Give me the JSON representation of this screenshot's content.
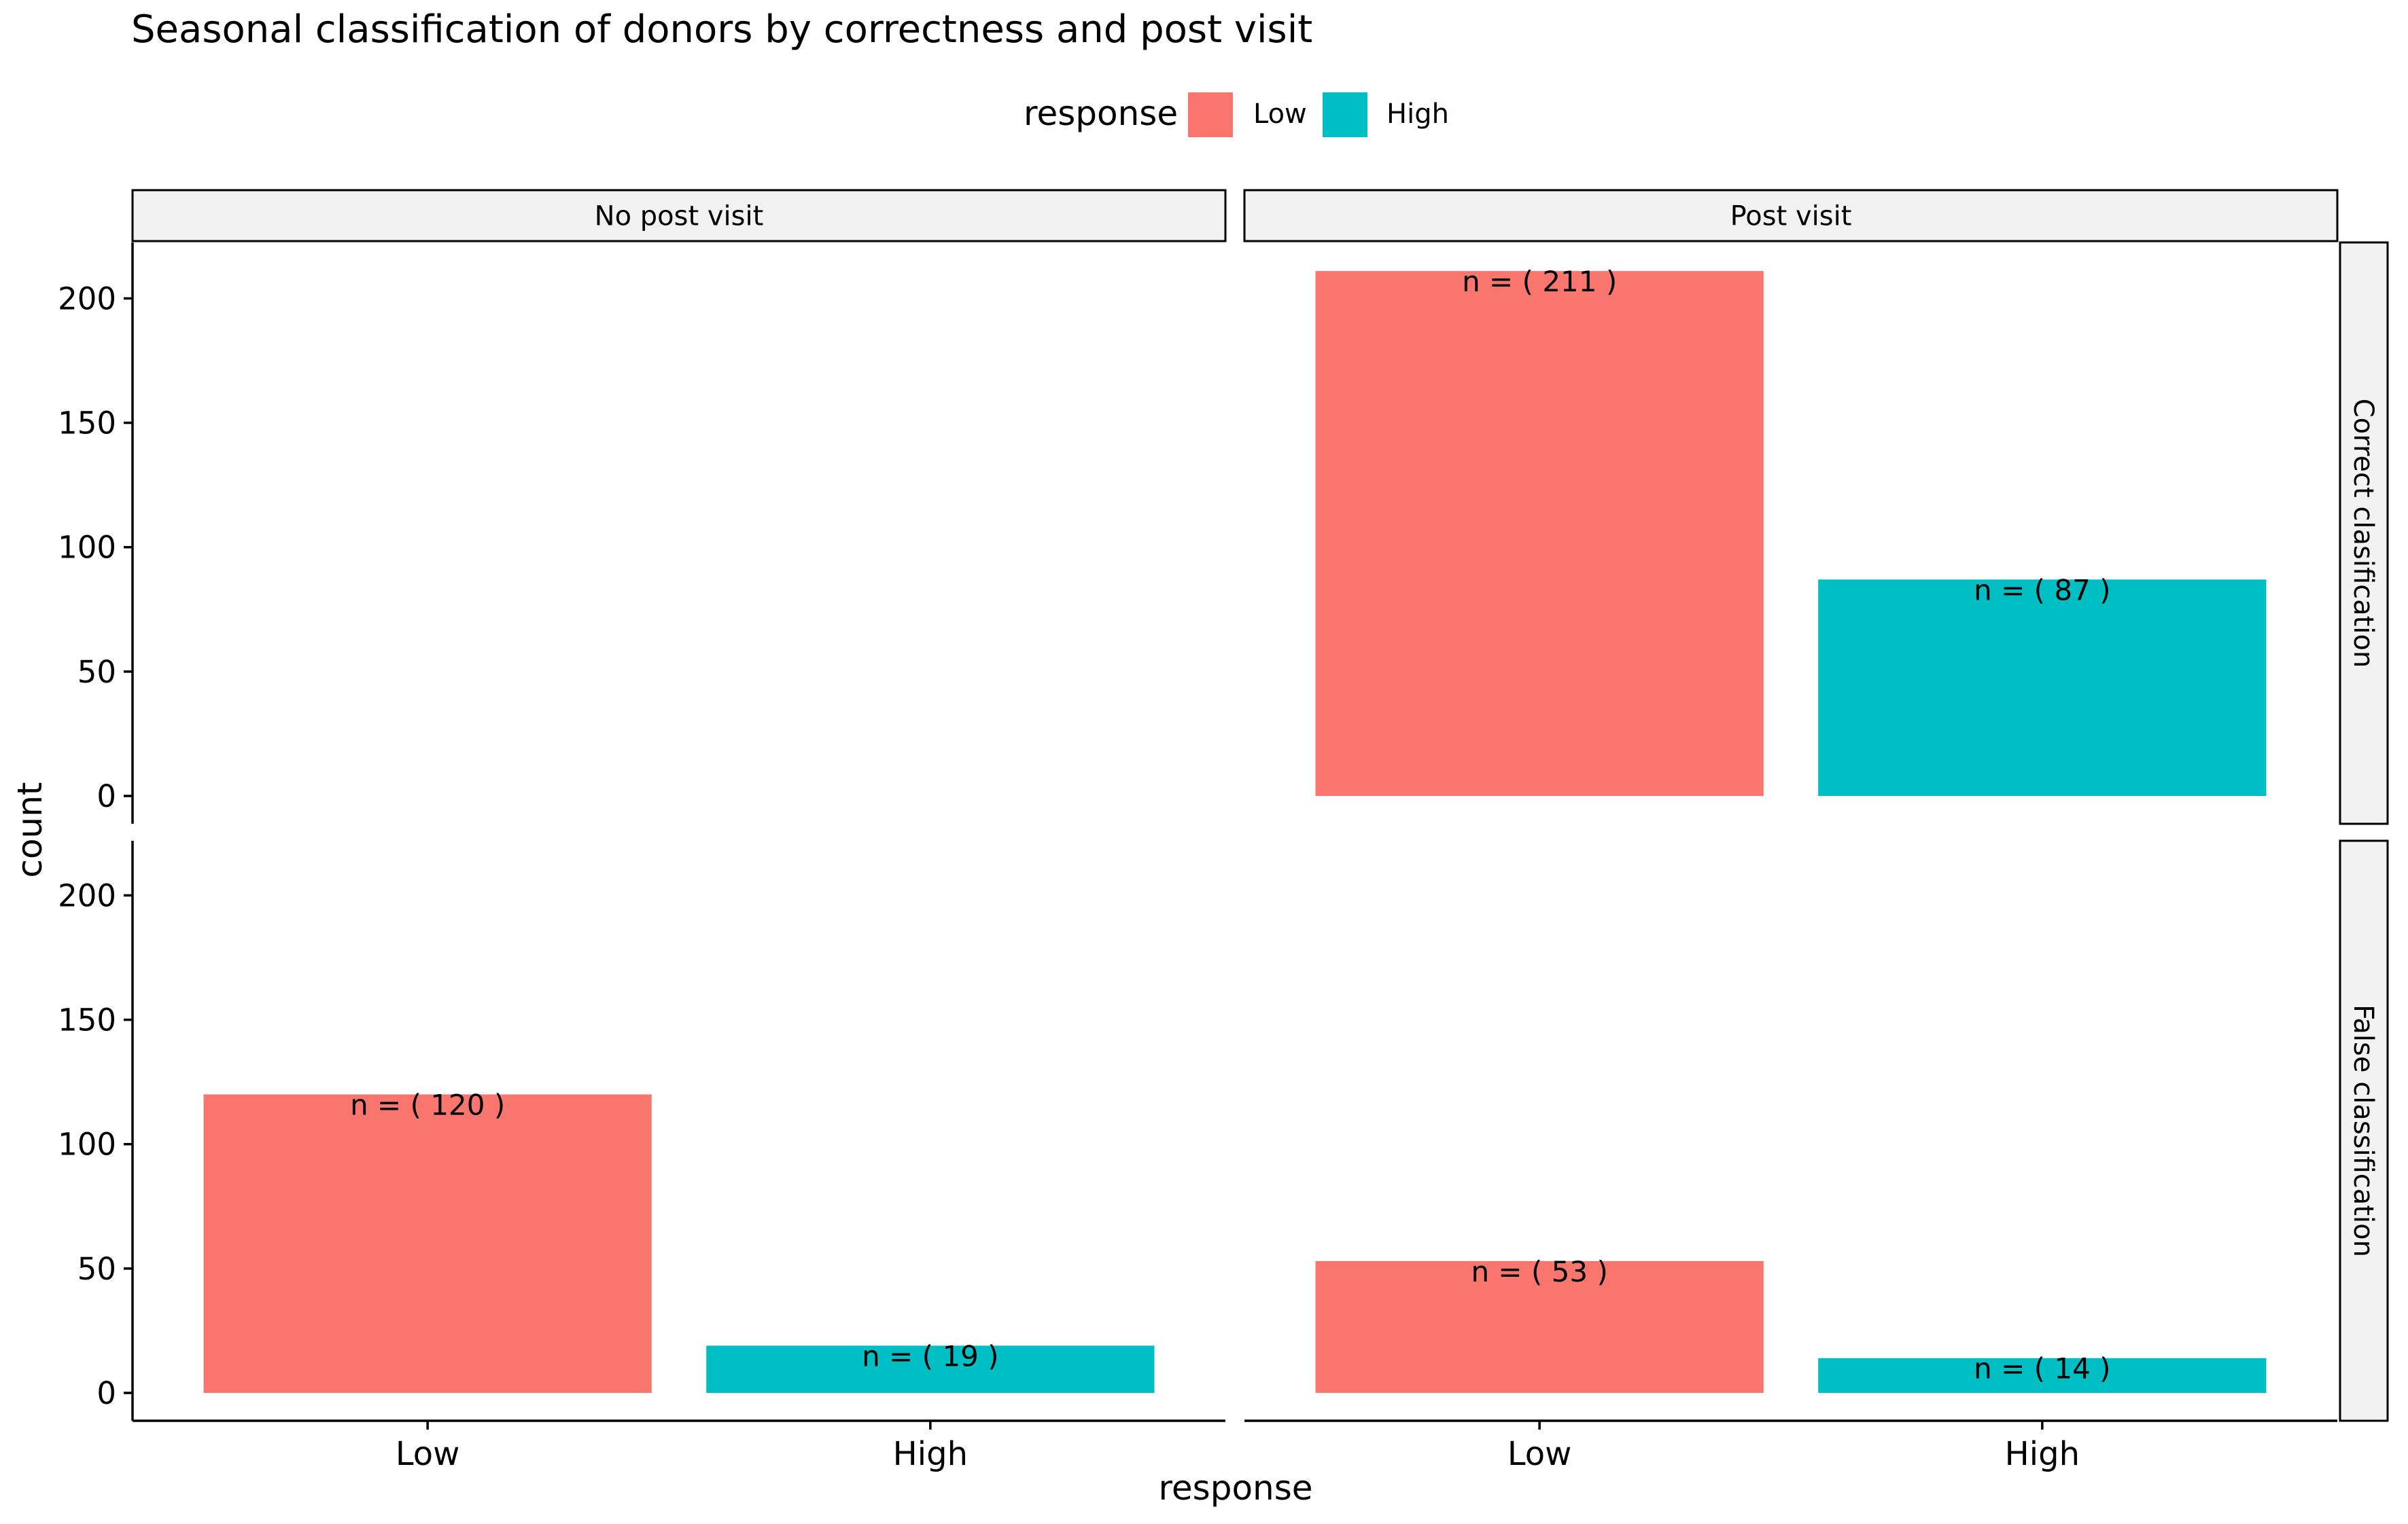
{
  "chart_data": {
    "type": "bar",
    "title": "Seasonal classification of donors by correctness and post visit",
    "xlabel": "response",
    "ylabel": "count",
    "ylim": [
      0,
      220
    ],
    "yticks": [
      0,
      50,
      100,
      150,
      200
    ],
    "categories": [
      "Low",
      "High"
    ],
    "legend": {
      "title": "response",
      "position": "top",
      "items": [
        {
          "label": "Low",
          "color": "#F8766D"
        },
        {
          "label": "High",
          "color": "#00BFC4"
        }
      ]
    },
    "grid": false,
    "facet_columns": [
      "No post visit",
      "Post visit"
    ],
    "facet_rows": [
      "Correct clasification",
      "False classification"
    ],
    "panels": [
      {
        "row": 0,
        "col": 0,
        "values": [
          null,
          null
        ],
        "labels": [
          "",
          ""
        ]
      },
      {
        "row": 0,
        "col": 1,
        "values": [
          211,
          87
        ],
        "labels": [
          "n = ( 211 )",
          "n = ( 87 )"
        ]
      },
      {
        "row": 1,
        "col": 0,
        "values": [
          120,
          19
        ],
        "labels": [
          "n = ( 120 )",
          "n = ( 19 )"
        ]
      },
      {
        "row": 1,
        "col": 1,
        "values": [
          53,
          14
        ],
        "labels": [
          "n = ( 53 )",
          "n = ( 14 )"
        ]
      }
    ]
  }
}
